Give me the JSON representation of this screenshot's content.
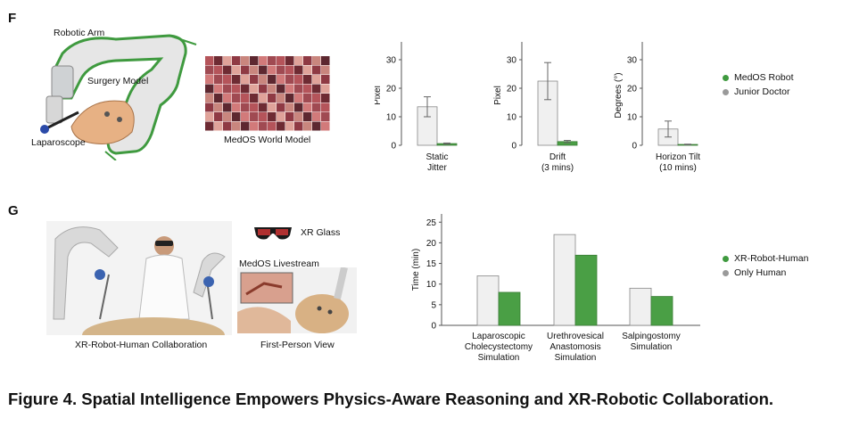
{
  "panel_f": {
    "letter": "F",
    "labels": {
      "robotic_arm": "Robotic Arm",
      "surgery_model": "Surgery Model",
      "laparoscope": "Laparoscope",
      "world_model": "MedOS World Model"
    },
    "legend": [
      {
        "name": "MedOS Robot",
        "color": "#3f9a3f"
      },
      {
        "name": "Junior Doctor",
        "color": "#9a9a9a"
      }
    ]
  },
  "panel_g": {
    "letter": "G",
    "labels": {
      "xr_glass": "XR Glass",
      "livestream": "MedOS Livestream",
      "collab": "XR-Robot-Human Collaboration",
      "first_person": "First-Person View"
    },
    "legend": [
      {
        "name": "XR-Robot-Human",
        "color": "#3f9a3f"
      },
      {
        "name": "Only Human",
        "color": "#9a9a9a"
      }
    ]
  },
  "chart_data": [
    {
      "type": "bar",
      "categories": [
        "Static Jitter"
      ],
      "category_lines": [
        [
          "Static",
          "Jitter"
        ]
      ],
      "series": [
        {
          "name": "Junior Doctor",
          "values": [
            13.5
          ],
          "error": [
            3.5
          ],
          "color": "#f0f0f0"
        },
        {
          "name": "MedOS Robot",
          "values": [
            0.6
          ],
          "error": [
            0.2
          ],
          "color": "#4a9f45"
        }
      ],
      "ylabel": "Pixel",
      "ylim": [
        0,
        35
      ],
      "yticks": [
        0,
        10,
        20,
        30
      ]
    },
    {
      "type": "bar",
      "categories": [
        "Drift (3 mins)"
      ],
      "category_lines": [
        [
          "Drift",
          "(3 mins)"
        ]
      ],
      "series": [
        {
          "name": "Junior Doctor",
          "values": [
            22.5
          ],
          "error": [
            6.5
          ],
          "color": "#f0f0f0"
        },
        {
          "name": "MedOS Robot",
          "values": [
            1.3
          ],
          "error": [
            0.4
          ],
          "color": "#4a9f45"
        }
      ],
      "ylabel": "Pixel",
      "ylim": [
        0,
        35
      ],
      "yticks": [
        0,
        10,
        20,
        30
      ]
    },
    {
      "type": "bar",
      "categories": [
        "Horizon Tilt (10 mins)"
      ],
      "category_lines": [
        [
          "Horizon Tilt",
          "(10 mins)"
        ]
      ],
      "series": [
        {
          "name": "Junior Doctor",
          "values": [
            5.7
          ],
          "error": [
            2.8
          ],
          "color": "#f0f0f0"
        },
        {
          "name": "MedOS Robot",
          "values": [
            0.3
          ],
          "error": [
            0.1
          ],
          "color": "#4a9f45"
        }
      ],
      "ylabel": "Degrees (°)",
      "ylim": [
        0,
        35
      ],
      "yticks": [
        0,
        10,
        20,
        30
      ]
    },
    {
      "type": "bar",
      "categories": [
        "Laparoscopic Cholecystectomy Simulation",
        "Urethrovesical Anastomosis Simulation",
        "Salpingostomy Simulation"
      ],
      "category_lines": [
        [
          "Laparoscopic",
          "Cholecystectomy",
          "Simulation"
        ],
        [
          "Urethrovesical",
          "Anastomosis",
          "Simulation"
        ],
        [
          "Salpingostomy",
          "Simulation"
        ]
      ],
      "series": [
        {
          "name": "Only Human",
          "values": [
            12,
            22,
            9
          ],
          "color": "#f0f0f0"
        },
        {
          "name": "XR-Robot-Human",
          "values": [
            8,
            17,
            7
          ],
          "color": "#4a9f45"
        }
      ],
      "ylabel": "Time (min)",
      "ylim": [
        0,
        27
      ],
      "yticks": [
        0,
        5,
        10,
        15,
        20,
        25
      ]
    }
  ],
  "caption": "Figure 4. Spatial Intelligence Empowers Physics-Aware Reasoning and XR-Robotic Collaboration."
}
